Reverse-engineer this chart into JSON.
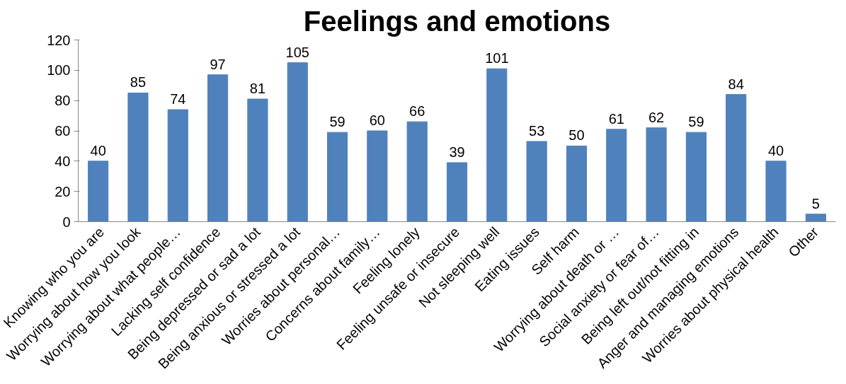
{
  "chart_data": {
    "type": "bar",
    "title": "Feelings and emotions",
    "categories": [
      "Knowing who you are",
      "Worrying about how you look",
      "Worrying about what people…",
      "Lacking self confidence",
      "Being depressed or sad a lot",
      "Being anxious or stressed a lot",
      "Worries about personal…",
      "Concerns about family…",
      "Feeling lonely",
      "Feeling unsafe or insecure",
      "Not sleeping well",
      "Eating issues",
      "Self harm",
      "Worrying about death or …",
      "Social anxiety or fear of…",
      "Being left out/not fitting in",
      "Anger and managing emotions",
      "Worries about physical health",
      "Other"
    ],
    "values": [
      40,
      85,
      74,
      97,
      81,
      105,
      59,
      60,
      66,
      39,
      101,
      53,
      50,
      61,
      62,
      59,
      84,
      40,
      5
    ],
    "color": "#4f81bd",
    "ylim": [
      0,
      120
    ],
    "yticks": [
      0,
      20,
      40,
      60,
      80,
      100,
      120
    ],
    "grid": false,
    "data_labels": true
  }
}
